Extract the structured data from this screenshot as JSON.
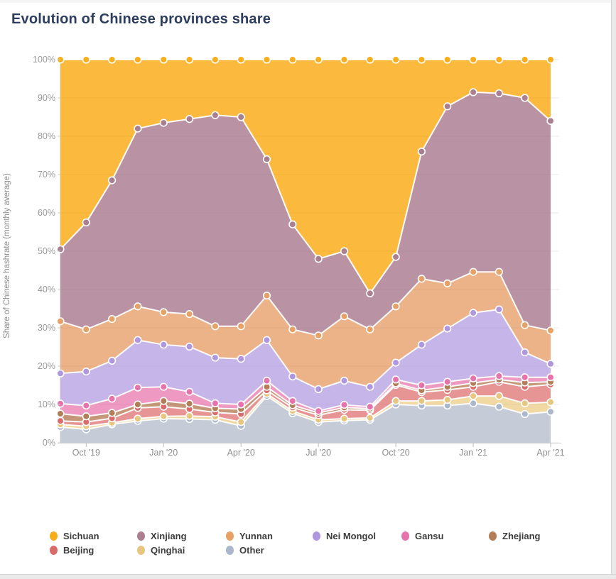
{
  "header": {
    "title": "Evolution of Chinese provinces share"
  },
  "y_axis": {
    "title": "Share of Chinese hashrate (monthly average)",
    "tick_labels": [
      "100%",
      "90%",
      "80%",
      "70%",
      "60%",
      "50%",
      "40%",
      "30%",
      "20%",
      "10%",
      "0%"
    ]
  },
  "x_axis": {
    "tick_labels": [
      "Oct '19",
      "Jan '20",
      "Apr '20",
      "Jul '20",
      "Oct '20",
      "Jan '21",
      "Apr '21"
    ],
    "tick_month_indices": [
      1,
      4,
      7,
      10,
      13,
      16,
      19
    ]
  },
  "chart_data": {
    "type": "area",
    "stacked": true,
    "unit": "percent",
    "title": "Evolution of Chinese provinces share",
    "ylabel": "Share of Chinese hashrate (monthly average)",
    "ylim": [
      0,
      100
    ],
    "grid": "horizontal",
    "legend_position": "bottom",
    "x": [
      "Sep '19",
      "Oct '19",
      "Nov '19",
      "Dec '19",
      "Jan '20",
      "Feb '20",
      "Mar '20",
      "Apr '20",
      "May '20",
      "Jun '20",
      "Jul '20",
      "Aug '20",
      "Sep '20",
      "Oct '20",
      "Nov '20",
      "Dec '20",
      "Jan '21",
      "Feb '21",
      "Mar '21",
      "Apr '21"
    ],
    "stack_order_bottom_to_top": [
      "Other",
      "Qinghai",
      "Beijing",
      "Zhejiang",
      "Gansu",
      "Nei Mongol",
      "Yunnan",
      "Xinjiang",
      "Sichuan"
    ],
    "legend_rows": [
      [
        "Sichuan",
        "Xinjiang",
        "Yunnan",
        "Nei Mongol",
        "Gansu",
        "Zhejiang"
      ],
      [
        "Beijing",
        "Qinghai",
        "Other"
      ]
    ],
    "series": [
      {
        "name": "Sichuan",
        "color": "#F7AE1B",
        "fill": "#FBB736",
        "values": [
          49.5,
          42.5,
          31.5,
          18.0,
          16.5,
          15.5,
          14.5,
          15.0,
          26.0,
          43.0,
          52.0,
          50.0,
          61.0,
          51.5,
          24.0,
          12.2,
          8.5,
          8.8,
          10.0,
          16.0
        ]
      },
      {
        "name": "Xinjiang",
        "color": "#AA8091",
        "fill": "#B68FA0",
        "values": [
          18.8,
          27.9,
          36.2,
          46.4,
          49.4,
          50.9,
          55.1,
          54.6,
          35.6,
          27.4,
          20.0,
          17.0,
          9.4,
          12.9,
          33.2,
          46.2,
          46.9,
          46.6,
          59.3,
          54.7
        ]
      },
      {
        "name": "Yunnan",
        "color": "#E6A266",
        "fill": "#EBAF83",
        "values": [
          13.6,
          11.0,
          10.9,
          8.8,
          8.5,
          8.5,
          8.2,
          8.5,
          11.6,
          12.3,
          14.0,
          16.8,
          15.0,
          14.7,
          17.2,
          11.8,
          10.7,
          9.8,
          7.1,
          8.7
        ]
      },
      {
        "name": "Nei Mongol",
        "color": "#AF97E0",
        "fill": "#C4B2E8",
        "values": [
          7.9,
          8.9,
          9.9,
          12.4,
          11.0,
          11.8,
          11.9,
          11.9,
          10.6,
          6.4,
          5.7,
          6.3,
          5.2,
          4.4,
          10.6,
          13.9,
          17.1,
          17.4,
          6.5,
          3.5
        ]
      },
      {
        "name": "Gansu",
        "color": "#E673AC",
        "fill": "#EC95BE",
        "values": [
          2.6,
          2.8,
          3.7,
          4.4,
          3.7,
          3.1,
          1.3,
          1.2,
          1.6,
          1.1,
          0.5,
          0.7,
          0.5,
          1.0,
          1.3,
          1.3,
          1.2,
          0.9,
          1.4,
          1.2
        ]
      },
      {
        "name": "Zhejiang",
        "color": "#B27E57",
        "fill": "#C29372",
        "values": [
          1.9,
          1.5,
          1.4,
          0.9,
          1.5,
          1.4,
          1.1,
          1.3,
          0.9,
          0.6,
          0.6,
          0.6,
          0.4,
          0.4,
          0.5,
          0.8,
          1.0,
          0.6,
          1.1,
          0.7
        ]
      },
      {
        "name": "Beijing",
        "color": "#D96B6B",
        "fill": "#E59090",
        "values": [
          0.9,
          1.1,
          1.2,
          2.8,
          2.5,
          1.8,
          1.1,
          2.1,
          0.9,
          0.9,
          1.2,
          2.3,
          2.0,
          4.2,
          2.3,
          2.6,
          2.4,
          3.7,
          4.3,
          4.6
        ]
      },
      {
        "name": "Qinghai",
        "color": "#E7C77F",
        "fill": "#EFD79F",
        "values": [
          0.7,
          0.8,
          0.4,
          0.6,
          0.6,
          0.8,
          0.8,
          1.0,
          0.6,
          0.6,
          0.6,
          0.5,
          0.5,
          0.9,
          1.2,
          1.5,
          1.9,
          2.8,
          2.8,
          2.5
        ]
      },
      {
        "name": "Other",
        "color": "#ABB7CA",
        "fill": "#C4CAD5",
        "values": [
          4.1,
          3.5,
          4.8,
          5.7,
          6.3,
          6.2,
          6.0,
          4.4,
          12.2,
          7.7,
          5.4,
          5.8,
          6.0,
          10.0,
          9.7,
          9.7,
          10.3,
          9.4,
          7.5,
          8.1
        ]
      }
    ]
  }
}
